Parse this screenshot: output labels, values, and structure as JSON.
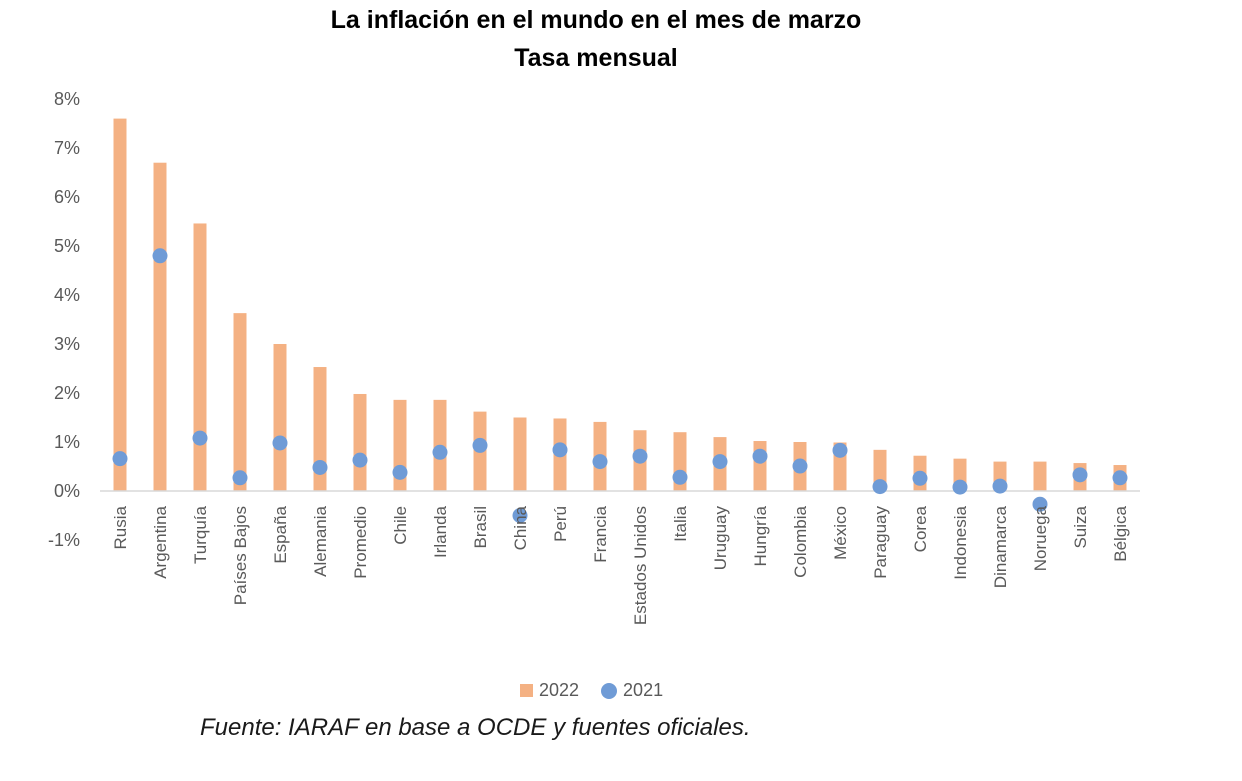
{
  "chart_data": {
    "type": "bar",
    "title": "La inflación en el mundo en el mes de marzo",
    "subtitle": "Tasa mensual",
    "categories": [
      "Rusia",
      "Argentina",
      "Turquía",
      "Países Bajos",
      "España",
      "Alemania",
      "Promedio",
      "Chile",
      "Irlanda",
      "Brasil",
      "China",
      "Perú",
      "Francia",
      "Estados Unidos",
      "Italia",
      "Uruguay",
      "Hungría",
      "Colombia",
      "México",
      "Paraguay",
      "Corea",
      "Indonesia",
      "Dinamarca",
      "Noruega",
      "Suiza",
      "Bélgica"
    ],
    "series": [
      {
        "name": "2022",
        "kind": "bar",
        "color": "#f4b183",
        "values": [
          7.6,
          6.7,
          5.46,
          3.63,
          3.0,
          2.53,
          1.98,
          1.86,
          1.86,
          1.62,
          1.5,
          1.48,
          1.41,
          1.24,
          1.2,
          1.1,
          1.02,
          1.0,
          0.99,
          0.84,
          0.72,
          0.66,
          0.6,
          0.6,
          0.57,
          0.53
        ]
      },
      {
        "name": "2021",
        "kind": "point",
        "color": "#6f9bd6",
        "values": [
          0.66,
          4.8,
          1.08,
          0.27,
          0.98,
          0.48,
          0.63,
          0.38,
          0.79,
          0.93,
          -0.5,
          0.84,
          0.6,
          0.71,
          0.28,
          0.6,
          0.71,
          0.51,
          0.83,
          0.09,
          0.26,
          0.08,
          0.1,
          -0.27,
          0.33,
          0.27
        ]
      }
    ],
    "y_tick_labels": [
      "8%",
      "7%",
      "6%",
      "5%",
      "4%",
      "3%",
      "2%",
      "1%",
      "0%",
      "-1%"
    ],
    "ylim": [
      -1,
      8
    ],
    "grid": false,
    "legend_position": "bottom"
  },
  "legend": {
    "label_2022": "2022",
    "label_2021": "2021"
  },
  "source": "Fuente: IARAF en base a OCDE y fuentes oficiales."
}
